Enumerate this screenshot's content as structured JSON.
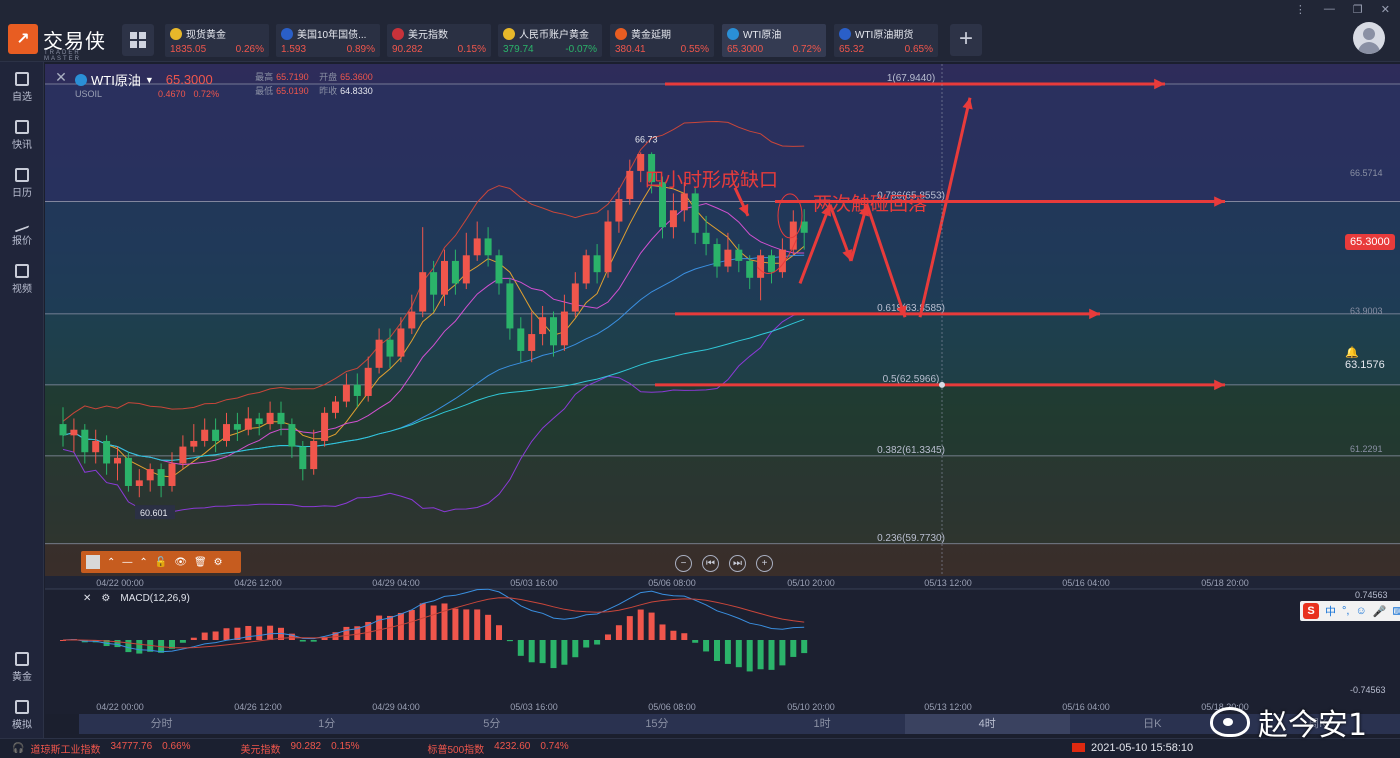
{
  "app": {
    "name": "交易侠",
    "subtitle": "TRADER MASTER"
  },
  "tickers": [
    {
      "name": "现货黄金",
      "price": "1835.05",
      "change": "0.26%",
      "dir": "up",
      "icon_color": "#e8b82a"
    },
    {
      "name": "美国10年国债...",
      "price": "1.593",
      "change": "0.89%",
      "dir": "up",
      "icon_color": "#2a5fc8"
    },
    {
      "name": "美元指数",
      "price": "90.282",
      "change": "0.15%",
      "dir": "up",
      "icon_color": "#c8323a"
    },
    {
      "name": "人民币账户黄金",
      "price": "379.74",
      "change": "-0.07%",
      "dir": "dn",
      "icon_color": "#e8b82a"
    },
    {
      "name": "黄金延期",
      "price": "380.41",
      "change": "0.55%",
      "dir": "up",
      "icon_color": "#e85d22"
    },
    {
      "name": "WTI原油",
      "price": "65.3000",
      "change": "0.72%",
      "dir": "up",
      "icon_color": "#2a8fd6"
    },
    {
      "name": "WTI原油期货",
      "price": "65.32",
      "change": "0.65%",
      "dir": "up",
      "icon_color": "#2a5fc8"
    }
  ],
  "window_controls": [
    "⋮",
    "—",
    "❐",
    "✕"
  ],
  "sidebar": [
    {
      "label": "自选",
      "icon": "bookmark-icon"
    },
    {
      "label": "快讯",
      "icon": "news-icon"
    },
    {
      "label": "日历",
      "icon": "calendar-icon"
    },
    {
      "label": "报价",
      "icon": "trend-icon"
    },
    {
      "label": "视频",
      "icon": "video-icon"
    },
    {
      "label": "黄金",
      "icon": "gold-icon"
    },
    {
      "label": "模拟",
      "icon": "wallet-icon"
    }
  ],
  "symbol": {
    "name": "WTI原油",
    "code": "USOIL",
    "price": "65.3000",
    "change": "0.4670",
    "change_pct": "0.72%",
    "high_label": "最高",
    "high": "65.7190",
    "open_label": "开盘",
    "open": "65.3600",
    "low_label": "最低",
    "low": "65.0190",
    "prev_label": "昨收",
    "prev": "64.8330"
  },
  "price_axis": {
    "current": "65.3000",
    "bell_level": "63.1576",
    "labels": [
      "66.5714",
      "63.9003",
      "61.2291"
    ],
    "macd_top": "0.74563",
    "macd_bottom": "-0.74563"
  },
  "fib_levels": [
    {
      "label": "1(67.9440)",
      "value": 67.944
    },
    {
      "label": "0.786(65.8553)",
      "value": 65.8553
    },
    {
      "label": "0.618(63.8585)",
      "value": 63.8585
    },
    {
      "label": "0.5(62.5966)",
      "value": 62.5966
    },
    {
      "label": "0.382(61.3345)",
      "value": 61.3345
    },
    {
      "label": "0.236(59.7730)",
      "value": 59.773
    }
  ],
  "annotations": {
    "gap": "四小时形成缺口",
    "retest": "两次触碰回落",
    "high": "66.73",
    "low": "60.601"
  },
  "x_axis": [
    "04/22 00:00",
    "04/26 12:00",
    "04/29 04:00",
    "05/03 16:00",
    "05/06 08:00",
    "05/10 20:00",
    "05/13 12:00",
    "05/16 04:00",
    "05/18 20:00"
  ],
  "macd": {
    "label": "MACD(12,26,9)"
  },
  "periods": [
    {
      "label": "分时"
    },
    {
      "label": "1分"
    },
    {
      "label": "5分"
    },
    {
      "label": "15分"
    },
    {
      "label": "1时"
    },
    {
      "label": "4时",
      "selected": true
    },
    {
      "label": "日K"
    },
    {
      "label": "周K"
    }
  ],
  "status": {
    "indices": [
      {
        "name": "道琼斯工业指数",
        "value": "34777.76",
        "change": "0.66%"
      },
      {
        "name": "美元指数",
        "value": "90.282",
        "change": "0.15%"
      },
      {
        "name": "标普500指数",
        "value": "4232.60",
        "change": "0.74%"
      }
    ],
    "datetime": "2021-05-10 15:58:10"
  },
  "watermark": "赵今安1",
  "sohu": {
    "mark": "S",
    "text": "中"
  },
  "colors": {
    "up": "#f0564c",
    "down": "#2bb36a",
    "annotation": "#e83b3b",
    "accent": "#e85d22"
  },
  "chart_data": {
    "type": "candlestick",
    "title": "WTI原油",
    "ylim": [
      59.2,
      68.3
    ],
    "candles": [
      [
        61.9,
        61.7,
        62.2,
        61.5
      ],
      [
        61.7,
        61.8,
        62.0,
        61.4
      ],
      [
        61.8,
        61.4,
        61.9,
        61.2
      ],
      [
        61.4,
        61.6,
        61.8,
        61.2
      ],
      [
        61.6,
        61.2,
        61.7,
        61.0
      ],
      [
        61.2,
        61.3,
        61.5,
        60.9
      ],
      [
        61.3,
        60.8,
        61.4,
        60.7
      ],
      [
        60.8,
        60.9,
        61.1,
        60.6
      ],
      [
        60.9,
        61.1,
        61.2,
        60.7
      ],
      [
        61.1,
        60.8,
        61.2,
        60.6
      ],
      [
        60.8,
        61.2,
        61.4,
        60.7
      ],
      [
        61.2,
        61.5,
        61.7,
        61.1
      ],
      [
        61.5,
        61.6,
        61.9,
        61.4
      ],
      [
        61.6,
        61.8,
        62.0,
        61.5
      ],
      [
        61.8,
        61.6,
        62.0,
        61.4
      ],
      [
        61.6,
        61.9,
        62.1,
        61.5
      ],
      [
        61.9,
        61.8,
        62.1,
        61.6
      ],
      [
        61.8,
        62.0,
        62.2,
        61.7
      ],
      [
        62.0,
        61.9,
        62.1,
        61.7
      ],
      [
        61.9,
        62.1,
        62.3,
        61.8
      ],
      [
        62.1,
        61.9,
        62.3,
        61.7
      ],
      [
        61.9,
        61.5,
        62.0,
        61.3
      ],
      [
        61.5,
        61.1,
        61.6,
        60.9
      ],
      [
        61.1,
        61.6,
        61.8,
        61.0
      ],
      [
        61.6,
        62.1,
        62.2,
        61.5
      ],
      [
        62.1,
        62.3,
        62.4,
        62.0
      ],
      [
        62.3,
        62.6,
        62.8,
        62.2
      ],
      [
        62.6,
        62.4,
        62.8,
        62.2
      ],
      [
        62.4,
        62.9,
        63.1,
        62.3
      ],
      [
        62.9,
        63.4,
        63.6,
        62.8
      ],
      [
        63.4,
        63.1,
        63.6,
        62.9
      ],
      [
        63.1,
        63.6,
        63.8,
        63.0
      ],
      [
        63.6,
        63.9,
        64.2,
        63.5
      ],
      [
        63.9,
        64.6,
        65.4,
        63.8
      ],
      [
        64.6,
        64.2,
        64.8,
        63.9
      ],
      [
        64.2,
        64.8,
        65.0,
        64.0
      ],
      [
        64.8,
        64.4,
        65.0,
        64.2
      ],
      [
        64.4,
        64.9,
        65.3,
        64.3
      ],
      [
        64.9,
        65.2,
        65.5,
        64.8
      ],
      [
        65.2,
        64.9,
        65.4,
        64.7
      ],
      [
        64.9,
        64.4,
        65.0,
        64.2
      ],
      [
        64.4,
        63.6,
        64.5,
        63.4
      ],
      [
        63.6,
        63.2,
        63.8,
        63.0
      ],
      [
        63.2,
        63.5,
        63.9,
        63.0
      ],
      [
        63.5,
        63.8,
        64.0,
        63.3
      ],
      [
        63.8,
        63.3,
        63.9,
        63.1
      ],
      [
        63.3,
        63.9,
        64.2,
        63.2
      ],
      [
        63.9,
        64.4,
        64.6,
        63.8
      ],
      [
        64.4,
        64.9,
        65.0,
        64.3
      ],
      [
        64.9,
        64.6,
        65.1,
        64.4
      ],
      [
        64.6,
        65.5,
        65.7,
        64.5
      ],
      [
        65.5,
        65.9,
        66.1,
        65.3
      ],
      [
        65.9,
        66.4,
        66.6,
        65.8
      ],
      [
        66.4,
        66.7,
        66.73,
        66.2
      ],
      [
        66.7,
        66.2,
        66.73,
        66.0
      ],
      [
        66.2,
        65.4,
        66.3,
        65.2
      ],
      [
        65.4,
        65.7,
        66.0,
        65.2
      ],
      [
        65.7,
        66.0,
        66.2,
        65.5
      ],
      [
        66.0,
        65.3,
        66.1,
        65.1
      ],
      [
        65.3,
        65.1,
        65.6,
        64.9
      ],
      [
        65.1,
        64.7,
        65.2,
        64.5
      ],
      [
        64.7,
        65.0,
        65.3,
        64.6
      ],
      [
        65.0,
        64.8,
        65.1,
        64.6
      ],
      [
        64.8,
        64.5,
        64.9,
        64.3
      ],
      [
        64.5,
        64.9,
        65.0,
        64.1
      ],
      [
        64.9,
        64.6,
        65.0,
        64.4
      ],
      [
        64.6,
        65.0,
        65.2,
        64.5
      ],
      [
        65.0,
        65.5,
        65.7,
        64.9
      ],
      [
        65.5,
        65.3,
        65.72,
        65.0
      ]
    ],
    "fib_levels": [
      67.944,
      65.8553,
      63.8585,
      62.5966,
      61.3345,
      59.773
    ],
    "x_ticks": [
      "04/22 00:00",
      "04/26 12:00",
      "04/29 04:00",
      "05/03 16:00",
      "05/06 08:00",
      "05/10 20:00",
      "05/13 12:00",
      "05/16 04:00",
      "05/18 20:00"
    ],
    "annotations": [
      "四小时形成缺口",
      "两次触碰回落",
      "66.73",
      "60.601"
    ]
  }
}
